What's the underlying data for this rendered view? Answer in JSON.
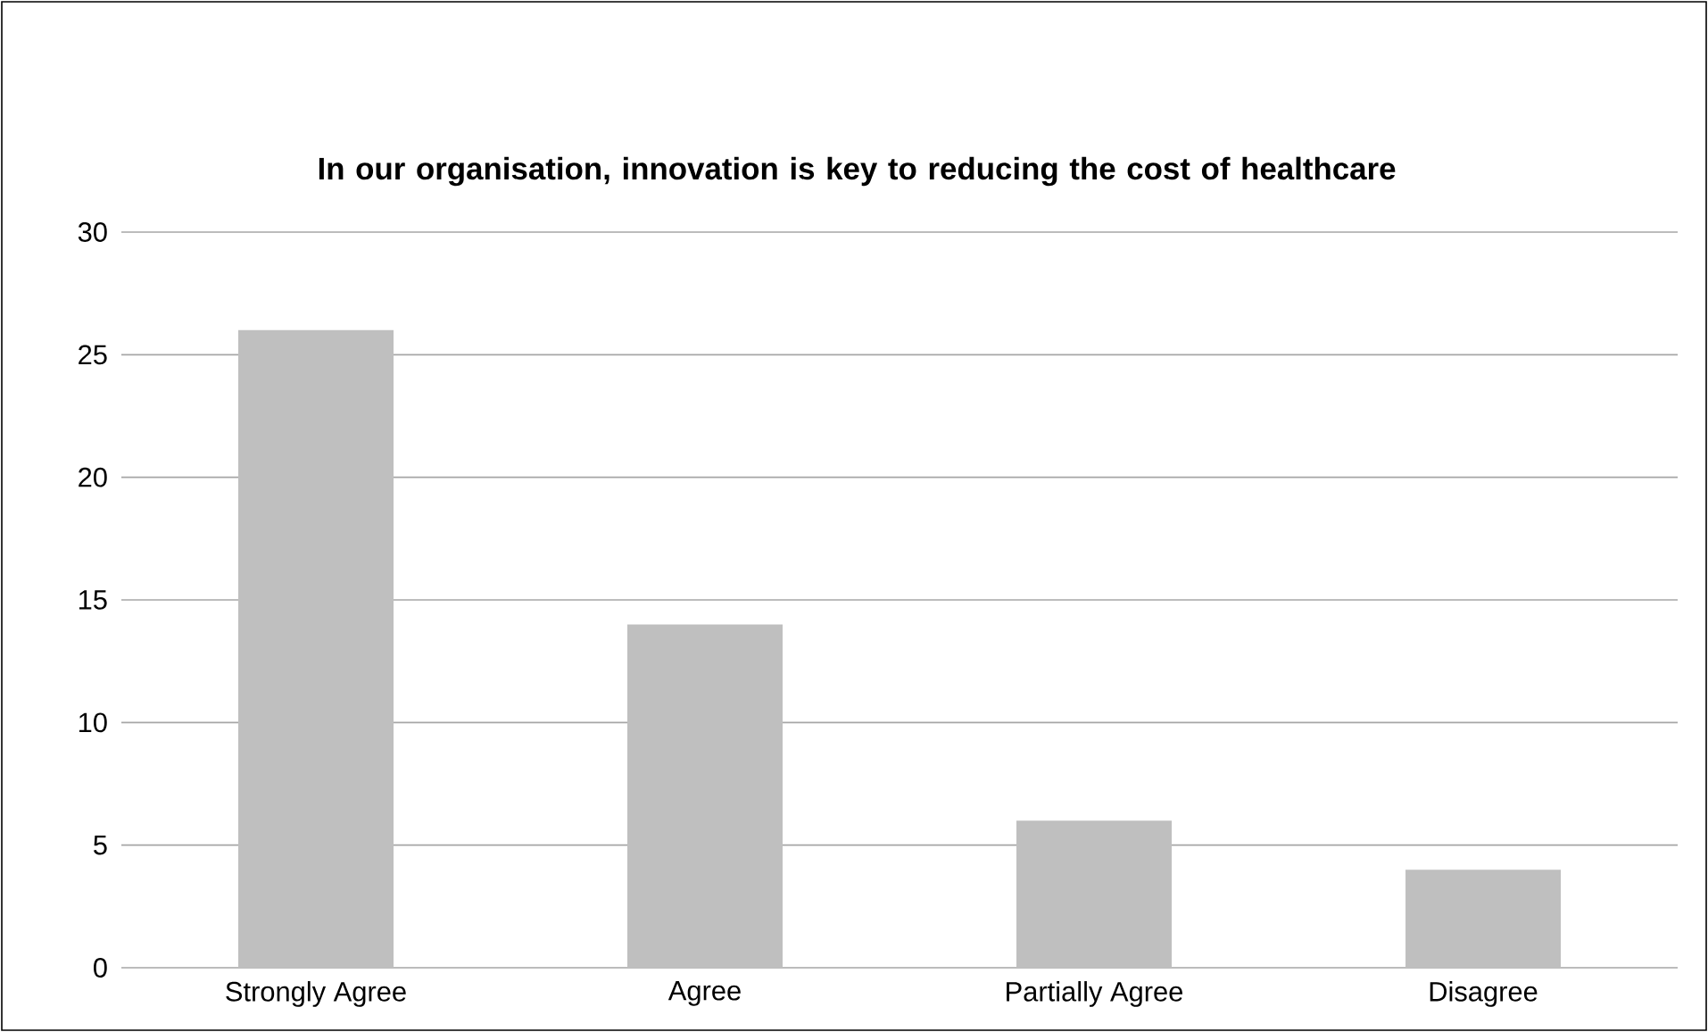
{
  "chart_data": {
    "type": "bar",
    "title": "In our organisation, innovation is key to reducing the cost of healthcare",
    "categories": [
      "Strongly Agree",
      "Agree",
      "Partially Agree",
      "Disagree"
    ],
    "values": [
      26,
      14,
      6,
      4
    ],
    "color": "#bfbfbf",
    "ylim": [
      0,
      30
    ],
    "yticks": [
      0,
      5,
      10,
      15,
      20,
      25,
      30
    ],
    "grid": "y"
  }
}
